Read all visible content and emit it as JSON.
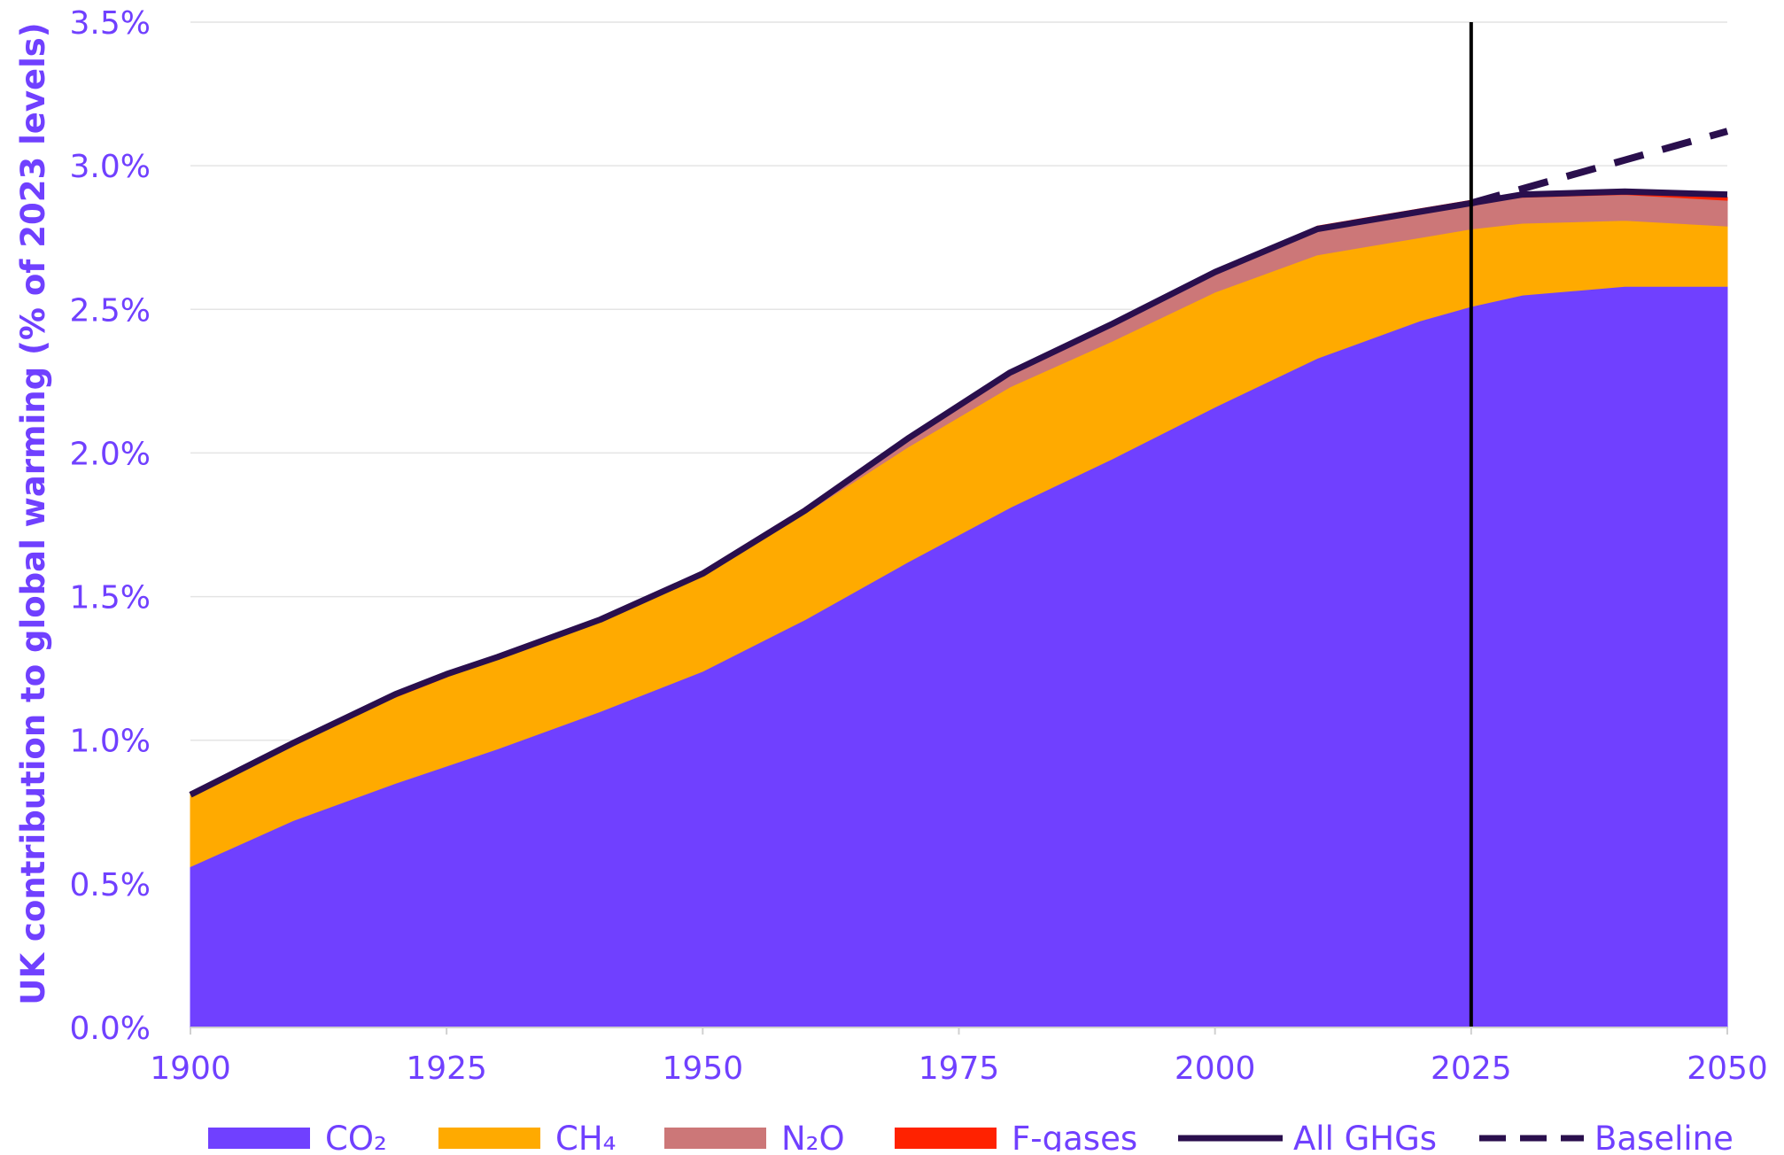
{
  "chart_data": {
    "type": "area",
    "ylabel": "UK contribution to global warming (% of 2023 levels)",
    "xlabel": "",
    "title": "",
    "xlim": [
      1900,
      2050
    ],
    "ylim": [
      0,
      3.5
    ],
    "x_ticks": [
      "1900",
      "1925",
      "1950",
      "1975",
      "2000",
      "2025",
      "2050"
    ],
    "y_ticks": [
      "0.0%",
      "0.5%",
      "1.0%",
      "1.5%",
      "2.0%",
      "2.5%",
      "3.0%",
      "3.5%"
    ],
    "grid": "horizontal",
    "legend_position": "bottom",
    "present_year_marker": 2025,
    "x": [
      1900,
      1910,
      1920,
      1925,
      1930,
      1940,
      1950,
      1960,
      1970,
      1980,
      1990,
      2000,
      2010,
      2020,
      2025,
      2030,
      2040,
      2050
    ],
    "series": [
      {
        "name": "CO₂",
        "legend_label": "CO₂",
        "color": "#7040ff",
        "kind": "stacked-area",
        "values": [
          0.56,
          0.72,
          0.85,
          0.91,
          0.97,
          1.1,
          1.24,
          1.42,
          1.62,
          1.81,
          1.98,
          2.16,
          2.33,
          2.46,
          2.51,
          2.55,
          2.58,
          2.58
        ]
      },
      {
        "name": "CH₄",
        "legend_label": "CH₄",
        "color": "#ffaa00",
        "kind": "stacked-area",
        "values": [
          0.25,
          0.27,
          0.3,
          0.31,
          0.32,
          0.32,
          0.34,
          0.37,
          0.4,
          0.42,
          0.41,
          0.4,
          0.36,
          0.29,
          0.27,
          0.25,
          0.23,
          0.21
        ]
      },
      {
        "name": "N₂O",
        "legend_label": "N₂O",
        "color": "#cc7778",
        "kind": "stacked-area",
        "values": [
          0.0,
          0.0,
          0.0,
          0.0,
          0.0,
          0.0,
          0.01,
          0.02,
          0.03,
          0.05,
          0.06,
          0.07,
          0.09,
          0.09,
          0.09,
          0.09,
          0.09,
          0.09
        ]
      },
      {
        "name": "F-gases",
        "legend_label": "F-gases",
        "color": "#ff2200",
        "kind": "stacked-area",
        "values": [
          0.0,
          0.0,
          0.0,
          0.0,
          0.0,
          0.0,
          0.0,
          0.0,
          0.0,
          0.0,
          0.0,
          0.0,
          0.01,
          0.01,
          0.01,
          0.01,
          0.01,
          0.01
        ]
      },
      {
        "name": "All GHGs",
        "legend_label": "All GHGs",
        "color": "#2a0f4d",
        "kind": "line",
        "values": [
          0.81,
          0.99,
          1.16,
          1.23,
          1.29,
          1.42,
          1.58,
          1.8,
          2.05,
          2.28,
          2.45,
          2.63,
          2.78,
          2.84,
          2.87,
          2.9,
          2.91,
          2.9
        ]
      },
      {
        "name": "Baseline",
        "legend_label": "Baseline",
        "color": "#2a0f4d",
        "kind": "dashed-line",
        "x": [
          2025,
          2030,
          2035,
          2040,
          2045,
          2050
        ],
        "values": [
          2.87,
          2.92,
          2.97,
          3.02,
          3.07,
          3.12
        ]
      }
    ]
  }
}
